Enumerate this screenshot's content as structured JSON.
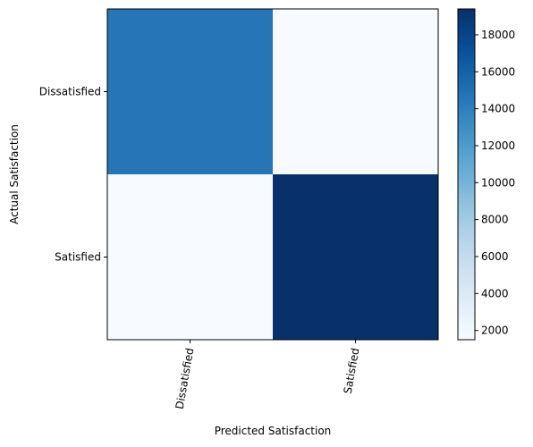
{
  "chart_data": {
    "type": "heatmap",
    "title": "",
    "xlabel": "Predicted Satisfaction",
    "ylabel": "Actual Satisfaction",
    "x_categories": [
      "Dissatisfied",
      "Satisfied"
    ],
    "y_categories": [
      "Dissatisfied",
      "Satisfied"
    ],
    "matrix": [
      [
        14600,
        1500
      ],
      [
        1500,
        19400
      ]
    ],
    "colormap": "Blues",
    "colorbar": {
      "min": 1500,
      "max": 19400,
      "ticks": [
        2000,
        4000,
        6000,
        8000,
        10000,
        12000,
        14000,
        16000,
        18000
      ]
    }
  }
}
